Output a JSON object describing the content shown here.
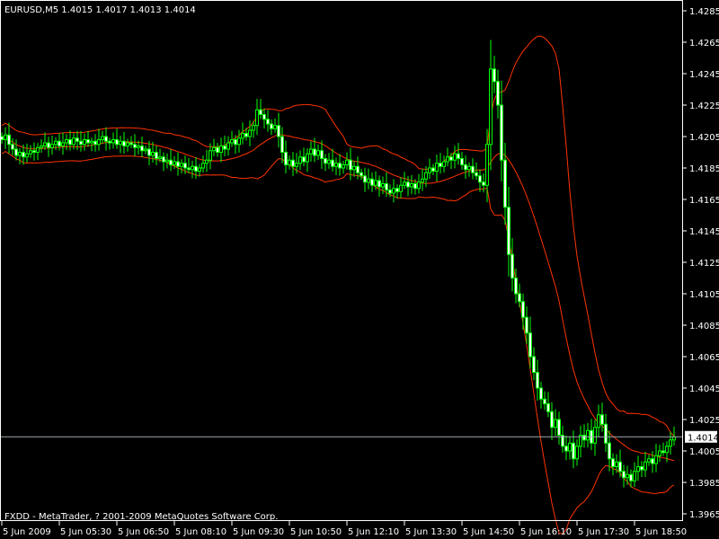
{
  "header": {
    "title": "EURUSD,M5  1.4015 1.4017 1.4013 1.4014"
  },
  "footer": {
    "copyright": "FXDD - MetaTrader, ? 2001-2009 MetaQuotes Software Corp."
  },
  "colors": {
    "background": "#000000",
    "candle": "#00FF00",
    "bear_body": "#FFFFFF",
    "bands": "#FF3300",
    "axis": "#FFFFFF",
    "price_line": "#A0A8B0"
  },
  "chart_data": {
    "type": "candlestick",
    "symbol": "EURUSD",
    "timeframe": "M5",
    "last_price": "1.4014",
    "ylim": [
      1.3955,
      1.4292
    ],
    "y_ticks": [
      "1.4285",
      "1.4265",
      "1.4245",
      "1.4225",
      "1.4205",
      "1.4185",
      "1.4165",
      "1.4145",
      "1.4125",
      "1.4105",
      "1.4085",
      "1.4065",
      "1.4045",
      "1.4025",
      "1.4005",
      "1.3985",
      "1.3965"
    ],
    "x_ticks": [
      "5 Jun 2009",
      "5 Jun 05:30",
      "5 Jun 06:50",
      "5 Jun 08:10",
      "5 Jun 09:30",
      "5 Jun 10:50",
      "5 Jun 12:10",
      "5 Jun 13:30",
      "5 Jun 14:50",
      "5 Jun 16:10",
      "5 Jun 17:30",
      "5 Jun 18:50"
    ],
    "indicator": "Bollinger Bands",
    "closes": [
      1.4203,
      1.4206,
      1.42,
      1.4197,
      1.4193,
      1.4195,
      1.4192,
      1.4194,
      1.4196,
      1.4195,
      1.4198,
      1.4199,
      1.4201,
      1.4198,
      1.42,
      1.4202,
      1.4199,
      1.4201,
      1.4203,
      1.42,
      1.4204,
      1.4202,
      1.42,
      1.4203,
      1.4201,
      1.4202,
      1.42,
      1.4203,
      1.4205,
      1.4202,
      1.4201,
      1.4203,
      1.42,
      1.4202,
      1.4199,
      1.4201,
      1.42,
      1.4198,
      1.4199,
      1.4196,
      1.4197,
      1.4193,
      1.4195,
      1.4191,
      1.4192,
      1.4189,
      1.419,
      1.4187,
      1.4189,
      1.4186,
      1.4188,
      1.4185,
      1.4184,
      1.4186,
      1.4183,
      1.4185,
      1.4188,
      1.419,
      1.4196,
      1.4198,
      1.4195,
      1.4199,
      1.4197,
      1.4201,
      1.4203,
      1.42,
      1.4204,
      1.4207,
      1.4205,
      1.4209,
      1.4212,
      1.4222,
      1.4219,
      1.4216,
      1.4213,
      1.421,
      1.4212,
      1.4205,
      1.4195,
      1.4187,
      1.419,
      1.4186,
      1.4188,
      1.4192,
      1.4189,
      1.4194,
      1.4197,
      1.4193,
      1.4196,
      1.4191,
      1.4188,
      1.419,
      1.4186,
      1.4188,
      1.4185,
      1.4187,
      1.419,
      1.4184,
      1.4186,
      1.4182,
      1.418,
      1.4176,
      1.4178,
      1.4174,
      1.4177,
      1.4173,
      1.4175,
      1.4171,
      1.4169,
      1.4172,
      1.417,
      1.4174,
      1.4176,
      1.4173,
      1.4175,
      1.4172,
      1.4176,
      1.4178,
      1.4182,
      1.4185,
      1.4183,
      1.4188,
      1.4186,
      1.4189,
      1.4192,
      1.419,
      1.4194,
      1.4191,
      1.4187,
      1.4184,
      1.4186,
      1.4182,
      1.418,
      1.4176,
      1.4174,
      1.42,
      1.4248,
      1.424,
      1.4225,
      1.419,
      1.416,
      1.413,
      1.4115,
      1.4105,
      1.41,
      1.409,
      1.408,
      1.4065,
      1.4055,
      1.4045,
      1.4038,
      1.4035,
      1.403,
      1.402,
      1.4025,
      1.4015,
      1.4008,
      1.4005,
      1.401,
      1.4,
      1.4008,
      1.4015,
      1.4012,
      1.4018,
      1.401,
      1.402,
      1.4028,
      1.4022,
      1.401,
      1.4,
      1.3995,
      1.3998,
      1.3992,
      1.3988,
      1.399,
      1.3986,
      1.3992,
      1.3995,
      1.3993,
      1.3998,
      1.4,
      1.3997,
      1.4002,
      1.4005,
      1.4004,
      1.4008,
      1.4012,
      1.4014
    ]
  }
}
